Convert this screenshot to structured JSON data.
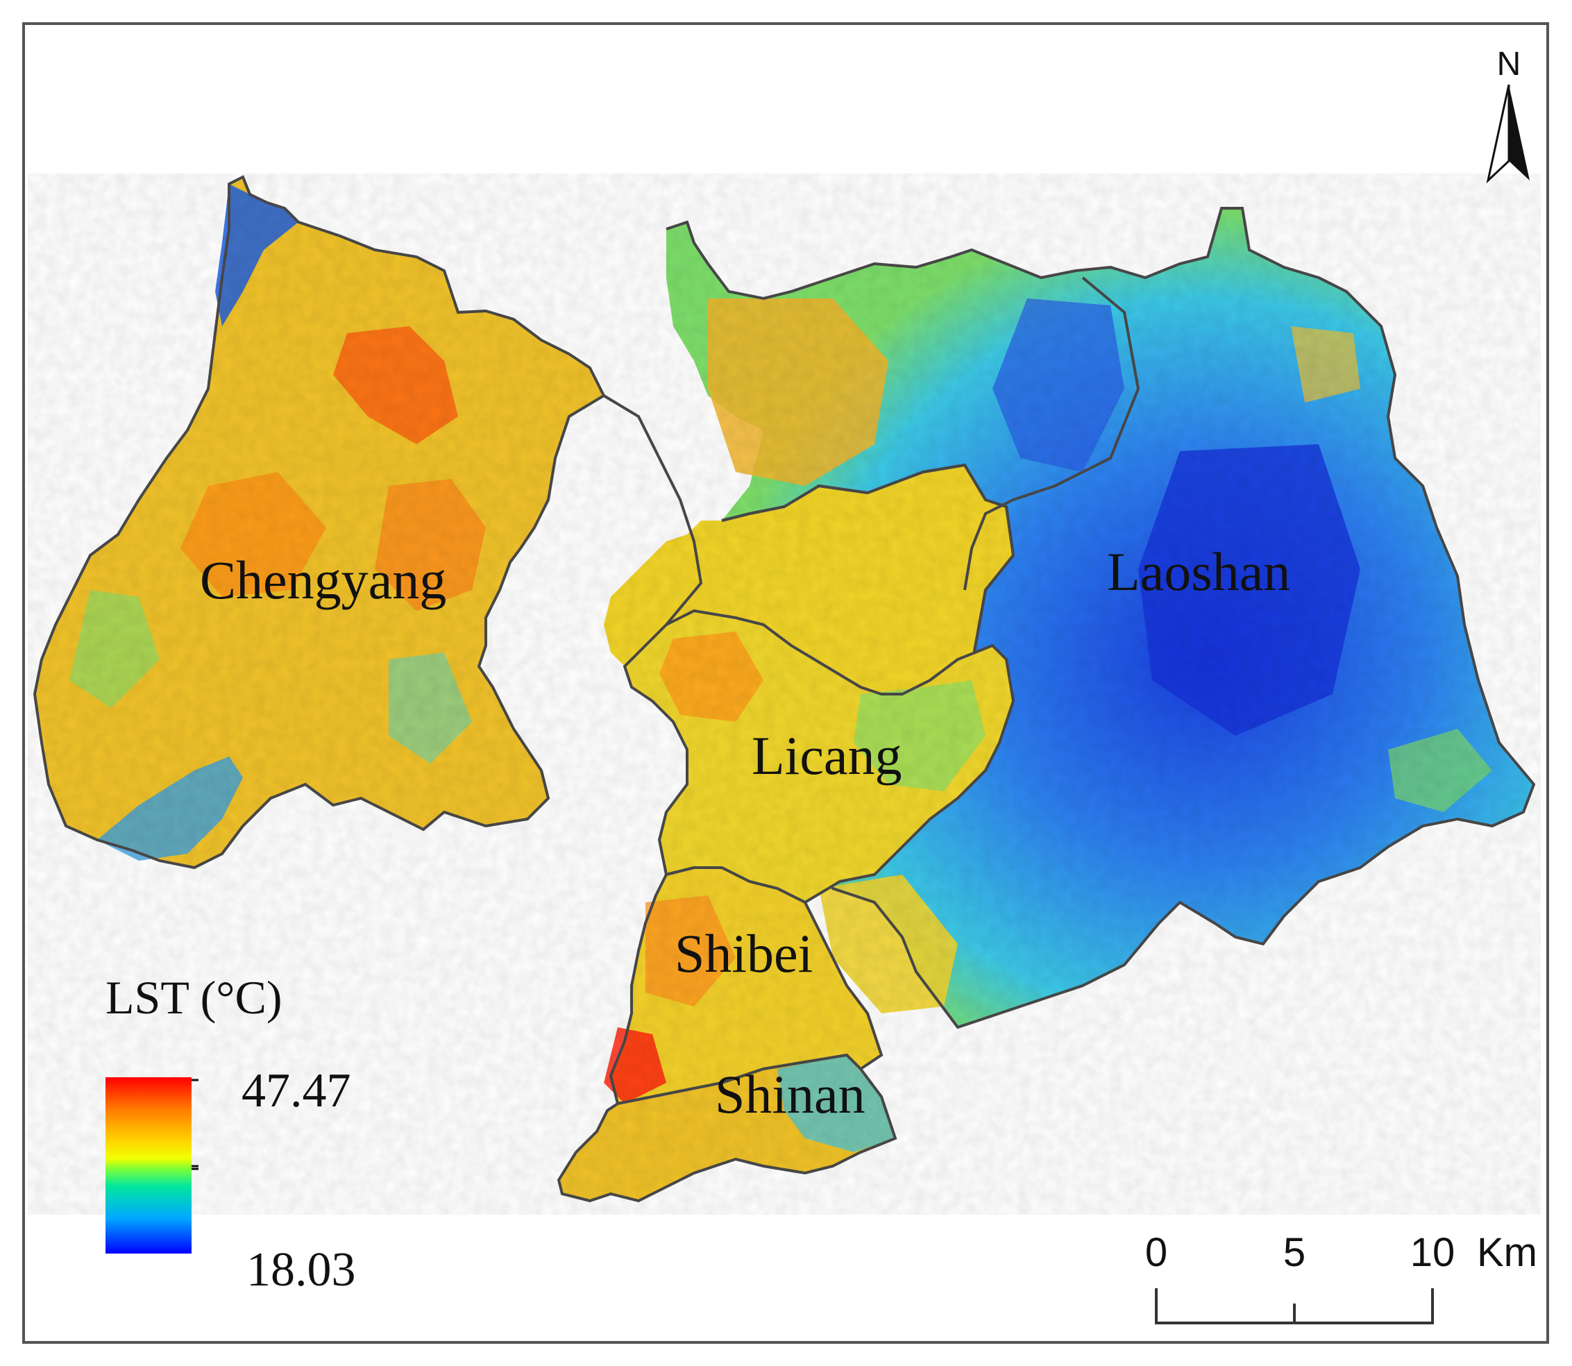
{
  "map": {
    "districts": [
      {
        "id": "chengyang",
        "label": "Chengyang"
      },
      {
        "id": "laoshan",
        "label": "Laoshan"
      },
      {
        "id": "licang",
        "label": "Licang"
      },
      {
        "id": "shibei",
        "label": "Shibei"
      },
      {
        "id": "shinan",
        "label": "Shinan"
      }
    ],
    "north_arrow": {
      "label": "N"
    }
  },
  "legend": {
    "title": "LST (°C)",
    "max_label": "47.47",
    "min_label": "18.03",
    "max_value": 47.47,
    "min_value": 18.03,
    "colors": [
      "#ff0000",
      "#ff7a00",
      "#ffd400",
      "#f2ff00",
      "#7dff38",
      "#00e6a0",
      "#00a8ff",
      "#0000ff"
    ]
  },
  "scale_bar": {
    "ticks": [
      "0",
      "5",
      "10"
    ],
    "unit": "Km"
  },
  "colors": {
    "boundary": "#4a4a4a",
    "frame": "#555555",
    "hot": "#ff3b10",
    "warm": "#ffb400",
    "mid": "#f0ef1a",
    "cool": "#3cc8e6",
    "cold": "#1a4fe0"
  }
}
